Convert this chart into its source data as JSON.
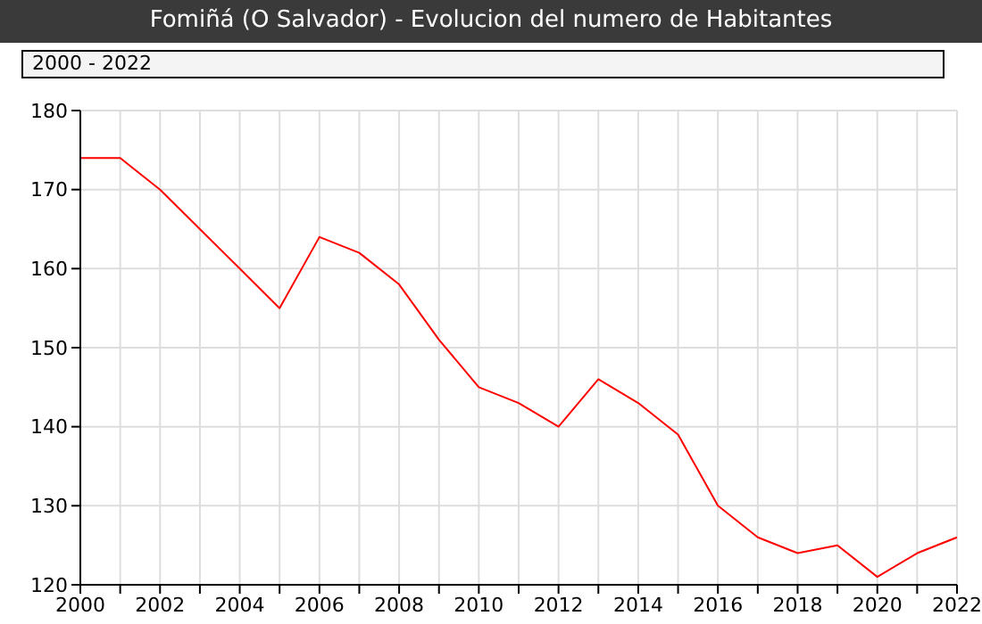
{
  "chart_data": {
    "type": "line",
    "title": "Fomiñá (O Salvador) - Evolucion del numero de Habitantes",
    "subtitle": "2000 - 2022",
    "x": [
      2000,
      2001,
      2002,
      2003,
      2004,
      2005,
      2006,
      2007,
      2008,
      2009,
      2010,
      2011,
      2012,
      2013,
      2014,
      2015,
      2016,
      2017,
      2018,
      2019,
      2020,
      2021,
      2022
    ],
    "series": [
      {
        "color": "#ff0000",
        "values": [
          174,
          174,
          170,
          165,
          160,
          155,
          164,
          162,
          158,
          151,
          145,
          143,
          140,
          146,
          143,
          139,
          130,
          126,
          124,
          125,
          121,
          124,
          126
        ]
      }
    ],
    "xlim": [
      2000,
      2022
    ],
    "xticks": [
      2000,
      {
        "value": 2001,
        "label": null
      },
      2002,
      {
        "value": 2003,
        "label": null
      },
      2004,
      {
        "value": 2005,
        "label": null
      },
      2006,
      {
        "value": 2007,
        "label": null
      },
      2008,
      {
        "value": 2009,
        "label": null
      },
      2010,
      {
        "value": 2011,
        "label": null
      },
      2012,
      {
        "value": 2013,
        "label": null
      },
      2014,
      {
        "value": 2015,
        "label": null
      },
      2016,
      {
        "value": 2017,
        "label": null
      },
      2018,
      {
        "value": 2019,
        "label": null
      },
      2020,
      {
        "value": 2021,
        "label": null
      },
      2022
    ],
    "ylim": [
      120,
      180
    ],
    "yticks": [
      120,
      130,
      140,
      150,
      160,
      170,
      180
    ],
    "grid": true,
    "legend": false,
    "marker": "none",
    "line_style": "solid"
  }
}
